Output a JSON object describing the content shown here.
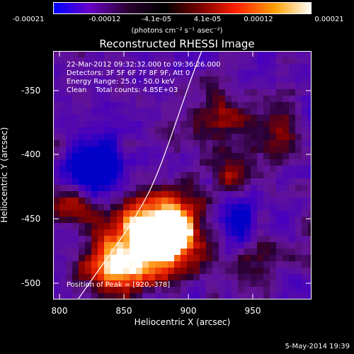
{
  "colorbar": {
    "ticks": [
      "-0.00021",
      "-0.00012",
      "-4.1e-05",
      "4.1e-05",
      "0.00012",
      "0.00021"
    ],
    "units": "(photons cm⁻² s⁻¹ asec⁻²)",
    "colors": [
      "#0000ff",
      "#6a00c8",
      "#2a0030",
      "#000000",
      "#7a0000",
      "#ff2000",
      "#ffa000",
      "#ffffff"
    ]
  },
  "title": "Reconstructed RHESSI Image",
  "info": {
    "time_range": "22-Mar-2012 09:32:32.000 to 09:36:26.000",
    "detectors": "Detectors: 3F 5F 6F 7F 8F 9F, Att 0",
    "energy": "Energy Range: 25.0 - 50.0 keV",
    "clean": "Clean    Total counts: 4.85E+03",
    "peak": "Position of Peak = [920,-378]"
  },
  "axes": {
    "xlabel": "Heliocentric X (arcsec)",
    "ylabel": "Heliocentric Y (arcsec)",
    "xticks": [
      "800",
      "850",
      "900",
      "950"
    ],
    "yticks": [
      "-350",
      "-400",
      "-450",
      "-500"
    ]
  },
  "datestamp": "5-May-2014 19:39"
}
